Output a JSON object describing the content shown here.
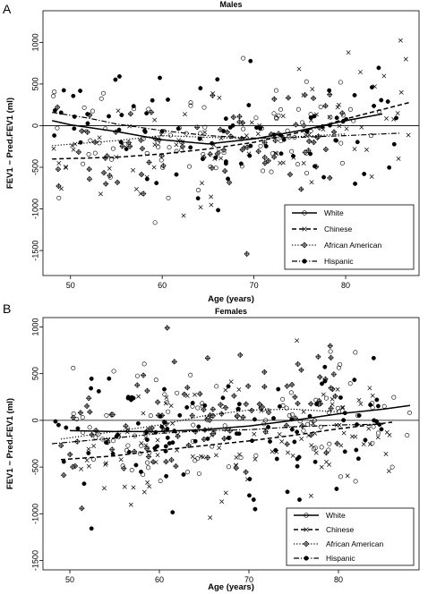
{
  "chart_data": [
    {
      "type": "scatter",
      "panel_label": "A",
      "title": "Males",
      "xlabel": "Age (years)",
      "ylabel": "FEV1 − Pred.FEV1 (ml)",
      "xlim": [
        47,
        88
      ],
      "ylim": [
        -1800,
        1380
      ],
      "xticks": [
        50,
        60,
        70,
        80
      ],
      "yticks": [
        -1500,
        -1000,
        -500,
        0,
        500,
        1000
      ],
      "reference_line": 0,
      "legend_position": "bottom-right",
      "series": [
        {
          "name": "White",
          "marker": "circle-open",
          "line": "solid",
          "trend": [
            [
              48,
              60
            ],
            [
              50,
              10
            ],
            [
              55,
              -70
            ],
            [
              60,
              -170
            ],
            [
              65,
              -220
            ],
            [
              70,
              -160
            ],
            [
              75,
              -60
            ],
            [
              80,
              60
            ],
            [
              84,
              140
            ]
          ]
        },
        {
          "name": "Chinese",
          "marker": "x",
          "line": "dashed",
          "trend": [
            [
              48,
              -400
            ],
            [
              55,
              -380
            ],
            [
              60,
              -340
            ],
            [
              65,
              -280
            ],
            [
              70,
              -200
            ],
            [
              75,
              -80
            ],
            [
              80,
              80
            ],
            [
              87,
              280
            ]
          ]
        },
        {
          "name": "African American",
          "marker": "diamond-plus",
          "line": "dotted",
          "trend": [
            [
              48,
              -240
            ],
            [
              55,
              -180
            ],
            [
              60,
              -120
            ],
            [
              65,
              -140
            ],
            [
              70,
              -160
            ],
            [
              75,
              -130
            ],
            [
              80,
              -100
            ]
          ]
        },
        {
          "name": "Hispanic",
          "marker": "circle-filled",
          "line": "dashdot",
          "trend": [
            [
              48,
              160
            ],
            [
              52,
              90
            ],
            [
              55,
              20
            ],
            [
              60,
              -60
            ],
            [
              65,
              -120
            ],
            [
              70,
              -150
            ],
            [
              75,
              -140
            ],
            [
              80,
              -120
            ],
            [
              86,
              -90
            ]
          ]
        }
      ]
    },
    {
      "type": "scatter",
      "panel_label": "B",
      "title": "Females",
      "xlabel": "Age (years)",
      "ylabel": "FEV1 − Pred.FEV1 (ml)",
      "xlim": [
        47,
        89
      ],
      "ylim": [
        -1600,
        1100
      ],
      "xticks": [
        50,
        60,
        70,
        80
      ],
      "yticks": [
        -1500,
        -1000,
        -500,
        0,
        500,
        1000
      ],
      "reference_line": 0,
      "legend_position": "bottom-right",
      "series": [
        {
          "name": "White",
          "marker": "circle-open",
          "line": "solid",
          "trend": [
            [
              50,
              -110
            ],
            [
              55,
              -120
            ],
            [
              60,
              -120
            ],
            [
              65,
              -100
            ],
            [
              70,
              -60
            ],
            [
              75,
              0
            ],
            [
              80,
              70
            ],
            [
              85,
              120
            ],
            [
              88,
              160
            ]
          ]
        },
        {
          "name": "Chinese",
          "marker": "x",
          "line": "dashed",
          "trend": [
            [
              49,
              -420
            ],
            [
              55,
              -380
            ],
            [
              60,
              -320
            ],
            [
              65,
              -270
            ],
            [
              70,
              -220
            ],
            [
              75,
              -160
            ],
            [
              80,
              -90
            ],
            [
              86,
              -20
            ]
          ]
        },
        {
          "name": "African American",
          "marker": "diamond-plus",
          "line": "dotted",
          "trend": [
            [
              49,
              -200
            ],
            [
              55,
              -120
            ],
            [
              60,
              -50
            ],
            [
              65,
              50
            ],
            [
              70,
              110
            ],
            [
              75,
              120
            ],
            [
              80,
              90
            ]
          ]
        },
        {
          "name": "Hispanic",
          "marker": "circle-filled",
          "line": "dashdot",
          "trend": [
            [
              48,
              -250
            ],
            [
              55,
              -190
            ],
            [
              60,
              -140
            ],
            [
              65,
              -110
            ],
            [
              70,
              -100
            ],
            [
              75,
              -70
            ],
            [
              80,
              -50
            ],
            [
              85,
              -40
            ]
          ]
        }
      ]
    }
  ]
}
